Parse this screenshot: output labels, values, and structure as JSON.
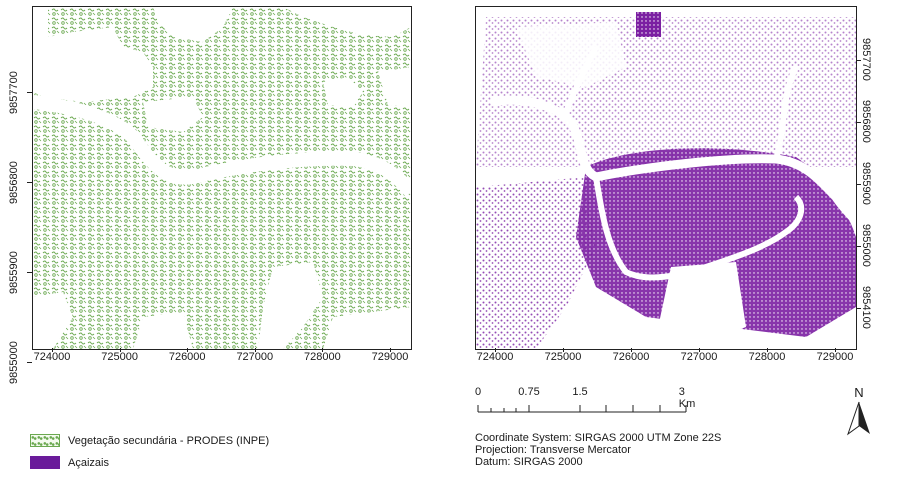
{
  "maps": {
    "x_ticks": [
      "724000",
      "725000",
      "726000",
      "727000",
      "728000",
      "729000"
    ],
    "left_y_ticks": [
      "9857700",
      "9856800",
      "9855900",
      "9855000"
    ],
    "right_y_ticks": [
      "9857700",
      "9856800",
      "9855900",
      "9855000",
      "9854100"
    ],
    "left_fill_color": "#6aa84f",
    "right_fill_color": "#7b1fa2"
  },
  "legend": {
    "vegetation_label": "Vegetação secundária - PRODES (INPE)",
    "acaizais_label": "Açaizais",
    "vegetation_color": "#6aa84f",
    "acaizais_color": "#6a1b9a"
  },
  "scale_bar": {
    "labels": [
      "0",
      "0.75",
      "1.5",
      "3 Km"
    ]
  },
  "north_arrow": {
    "label": "N",
    "icon": "north-arrow-icon"
  },
  "crs": {
    "coordinate_system": "Coordinate System: SIRGAS 2000 UTM Zone 22S",
    "projection": "Projection: Transverse Mercator",
    "datum": "Datum: SIRGAS 2000"
  }
}
